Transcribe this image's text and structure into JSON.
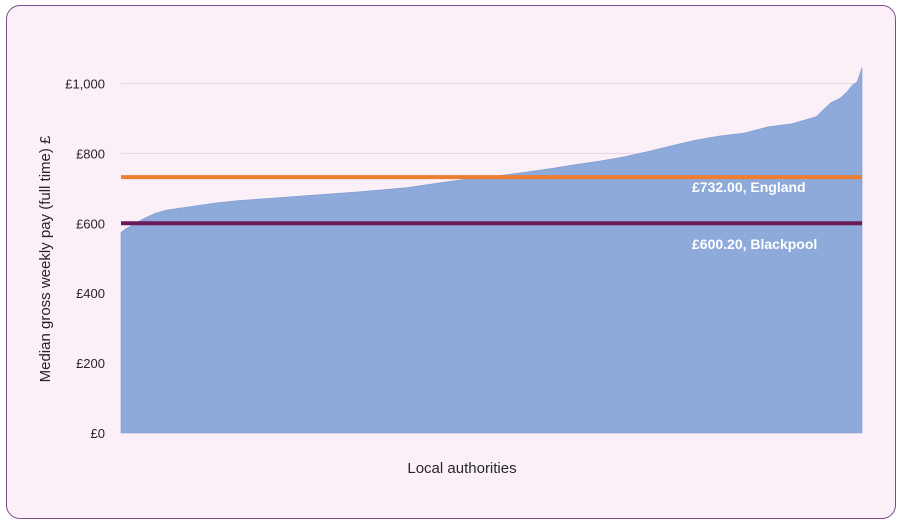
{
  "chart_data": {
    "type": "area",
    "title": "",
    "xlabel": "Local authorities",
    "ylabel": "Median gross weekly pay (full time) £",
    "ylim": [
      0,
      1050
    ],
    "y_ticks": [
      0,
      200,
      400,
      600,
      800,
      1000
    ],
    "y_tick_labels": [
      "£0",
      "£200",
      "£400",
      "£600",
      "£800",
      "£1,000"
    ],
    "grid": true,
    "series": [
      {
        "color": "#8eaadb",
        "x": [
          1,
          3,
          5,
          8,
          10,
          15,
          20,
          30,
          40,
          50,
          60,
          70,
          80,
          90,
          100,
          110,
          120,
          130,
          140,
          150,
          160,
          170,
          180,
          190,
          200,
          210,
          220,
          230,
          240,
          250,
          260,
          270,
          280,
          290,
          296,
          300,
          303,
          305,
          307,
          309
        ],
        "values": [
          574,
          584,
          592,
          604,
          612,
          628,
          638,
          648,
          658,
          665,
          670,
          675,
          680,
          685,
          690,
          696,
          702,
          712,
          722,
          730,
          738,
          747,
          757,
          768,
          778,
          790,
          805,
          822,
          838,
          850,
          858,
          876,
          885,
          905,
          945,
          958,
          978,
          995,
          1005,
          1045
        ]
      }
    ],
    "reference_lines": [
      {
        "label": "£732.00, England",
        "value": 732.0,
        "color": "#ed7d31"
      },
      {
        "label": "£600.20, Blackpool",
        "value": 600.2,
        "color": "#6b1a57"
      }
    ]
  }
}
